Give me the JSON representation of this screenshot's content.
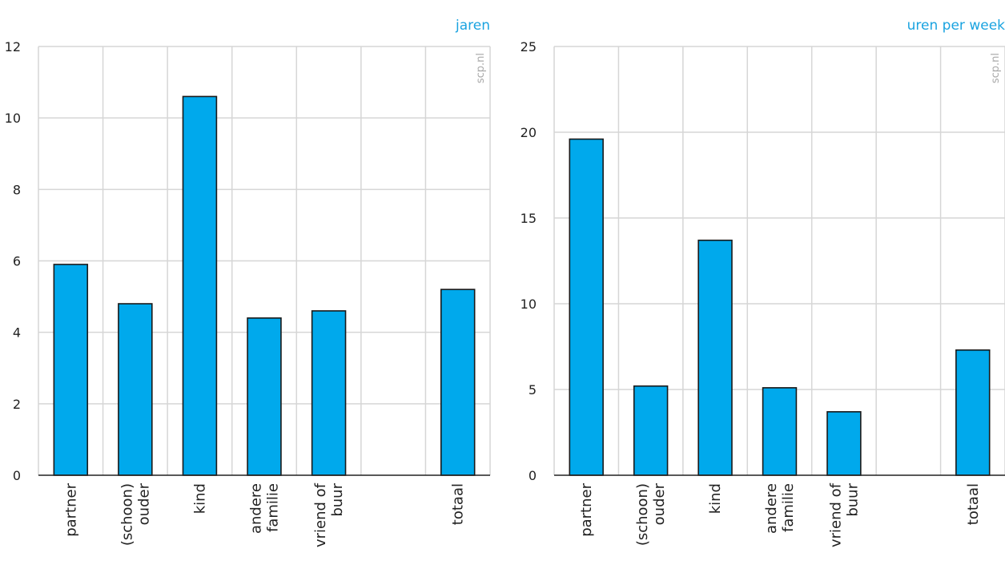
{
  "colors": {
    "bar": "#00a9ec",
    "unit_label": "#1aa3e0"
  },
  "watermark": "scp.nl",
  "chart_data": [
    {
      "type": "bar",
      "unit_label": "jaren",
      "categories": [
        [
          "partner"
        ],
        [
          "(schoon)",
          "ouder"
        ],
        [
          "kind"
        ],
        [
          "andere",
          "familie"
        ],
        [
          "vriend of",
          "buur"
        ],
        [
          ""
        ],
        [
          "totaal"
        ]
      ],
      "values": [
        5.9,
        4.8,
        10.6,
        4.4,
        4.6,
        null,
        5.2
      ],
      "ylim": [
        0,
        12
      ],
      "yticks": [
        0,
        2,
        4,
        6,
        8,
        10,
        12
      ],
      "grid": true
    },
    {
      "type": "bar",
      "unit_label": "uren per week",
      "categories": [
        [
          "partner"
        ],
        [
          "(schoon)",
          "ouder"
        ],
        [
          "kind"
        ],
        [
          "andere",
          "familie"
        ],
        [
          "vriend of",
          "buur"
        ],
        [
          ""
        ],
        [
          "totaal"
        ]
      ],
      "values": [
        19.6,
        5.2,
        13.7,
        5.1,
        3.7,
        null,
        7.3
      ],
      "ylim": [
        0,
        25
      ],
      "yticks": [
        0,
        5,
        10,
        15,
        20,
        25
      ],
      "grid": true
    }
  ]
}
